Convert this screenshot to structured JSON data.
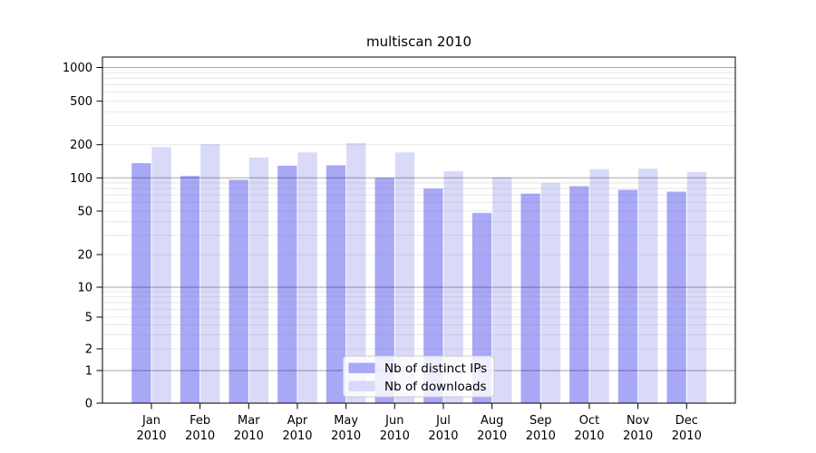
{
  "chart_data": {
    "type": "bar",
    "title": "multiscan 2010",
    "scale": "log-like (symlog), bars baseline at 0",
    "categories": [
      "Jan",
      "Feb",
      "Mar",
      "Apr",
      "May",
      "Jun",
      "Jul",
      "Aug",
      "Sep",
      "Oct",
      "Nov",
      "Dec"
    ],
    "year_label": "2010",
    "series": [
      {
        "name": "Nb of distinct IPs",
        "color": "#a8a8f7",
        "values": [
          136,
          104,
          96,
          129,
          130,
          100,
          80,
          48,
          72,
          84,
          78,
          75
        ]
      },
      {
        "name": "Nb of downloads",
        "color": "#d9d9f8",
        "values": [
          190,
          202,
          153,
          170,
          207,
          170,
          115,
          101,
          90,
          120,
          121,
          113
        ]
      }
    ],
    "y_ticks": [
      0,
      1,
      2,
      5,
      10,
      20,
      50,
      100,
      200,
      500,
      1000
    ],
    "ylim": [
      0,
      1200
    ],
    "grid": true,
    "legend_position": "lower center",
    "colors": {
      "major_gridline": "rgba(0,0,0,0.35)",
      "minor_gridline": "rgba(128,128,128,0.18)",
      "axis": "#000000",
      "legend_border": "#cccccc",
      "legend_background": "rgba(255,255,255,0.8)",
      "text": "#000000"
    }
  }
}
